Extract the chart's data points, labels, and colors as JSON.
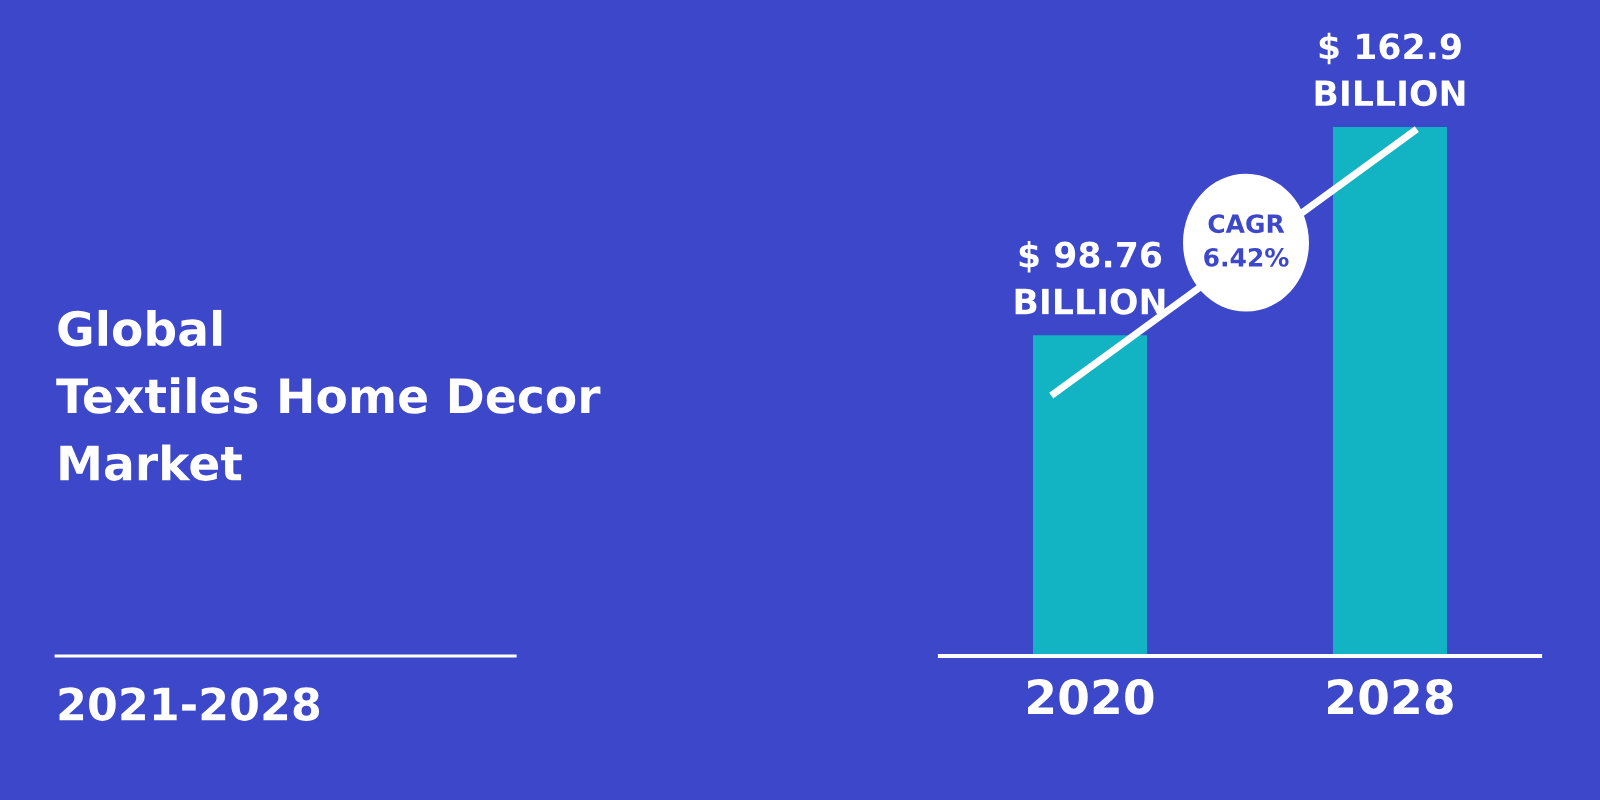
{
  "chart_data": {
    "type": "bar",
    "title": "Global\nTextiles Home Decor\nMarket",
    "subtitle": "2021-2028",
    "categories": [
      "2020",
      "2028"
    ],
    "values": [
      98.76,
      162.9
    ],
    "color": "#12b3c2",
    "value_labels": [
      "$ 98.76\nBILLION",
      "$ 162.9\nBILLION"
    ],
    "annotations": [
      "CAGR\n6.42%"
    ],
    "grid": false,
    "legend": false
  }
}
